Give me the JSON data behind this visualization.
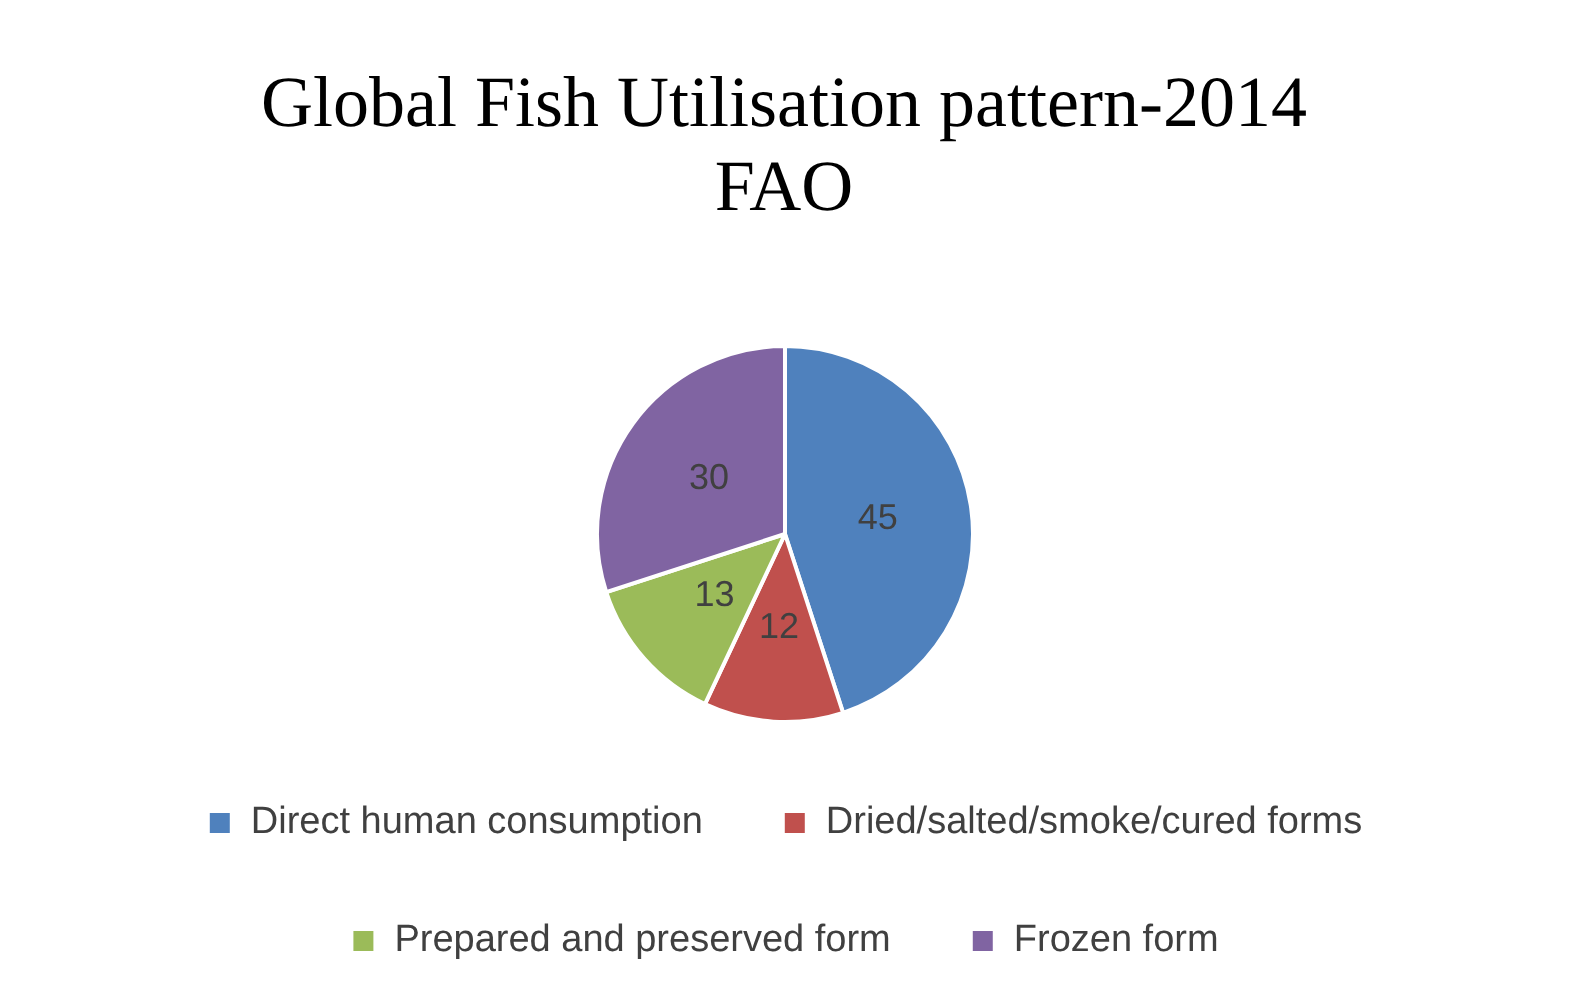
{
  "chart_data": {
    "type": "pie",
    "title": "Global Fish Utilisation pattern-2014 FAO",
    "categories": [
      "Direct human consumption",
      "Dried/salted/smoke/cured forms",
      "Prepared and preserved form",
      "Frozen form"
    ],
    "values": [
      45,
      12,
      13,
      30
    ],
    "colors": [
      "#4f81bd",
      "#c0504d",
      "#9bbb59",
      "#8064a2"
    ],
    "data_labels": true,
    "legend": "bottom"
  }
}
